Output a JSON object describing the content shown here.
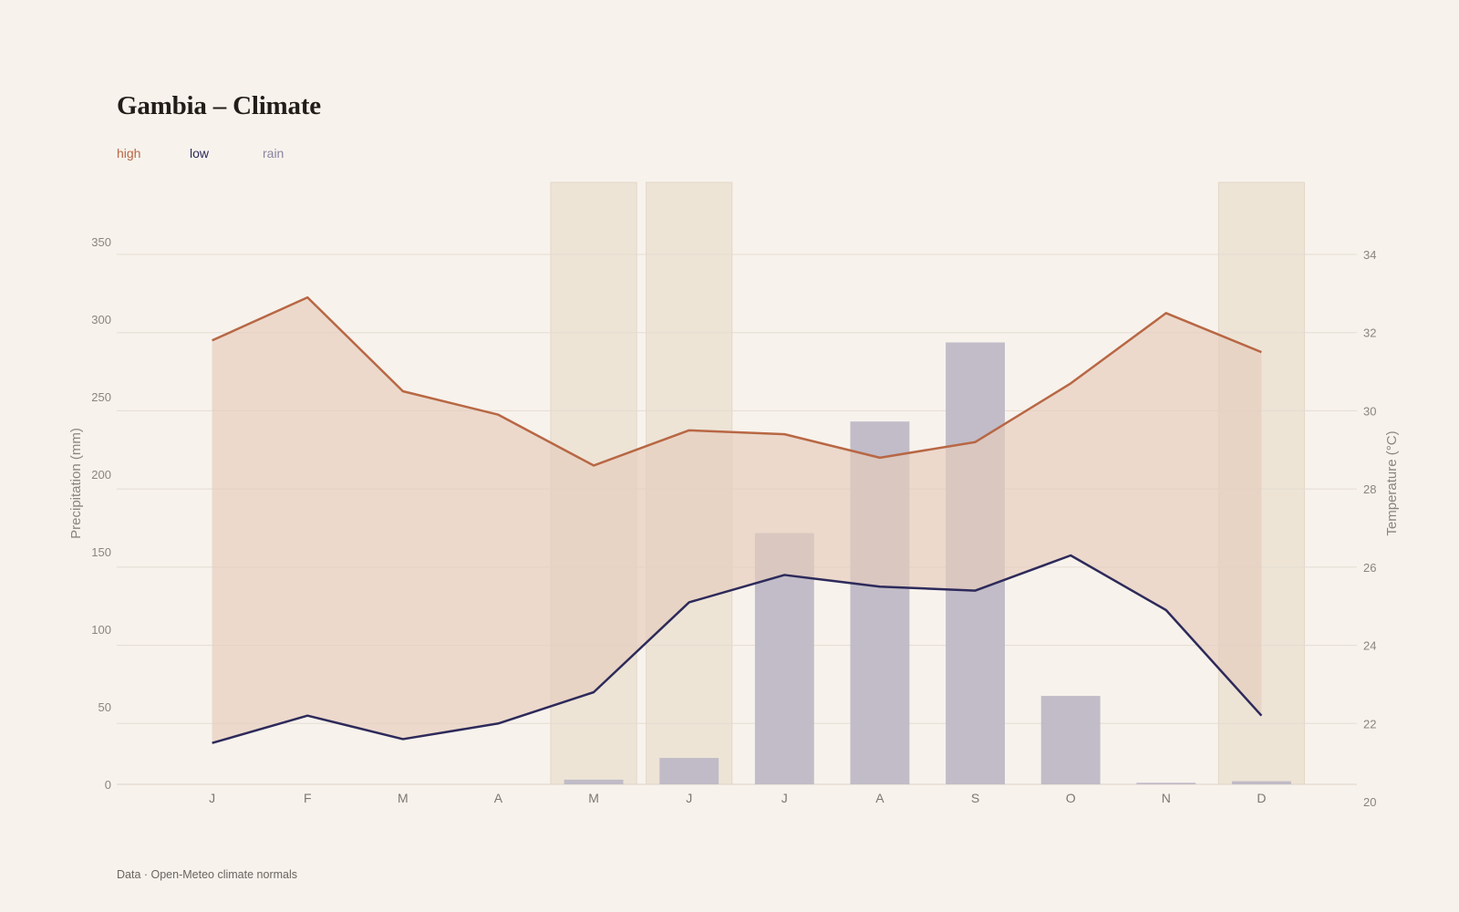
{
  "title": "Gambia – Climate",
  "legend": [
    {
      "label": "high",
      "color": "#b86744"
    },
    {
      "label": "low",
      "color": "#2d2a5a"
    },
    {
      "label": "rain",
      "color": "#8a85a0"
    }
  ],
  "source": "Data · Open-Meteo climate normals",
  "colors": {
    "high_line": "#b86744",
    "band_fill": "#e6cdbd",
    "low_line": "#2d2a5a",
    "rain_bar": "#bcb7c4",
    "highlight": "#ede4d6",
    "grid": "#e5dcd2"
  },
  "chart_data": {
    "type": "bar",
    "categories": [
      "J",
      "F",
      "M",
      "A",
      "M",
      "J",
      "J",
      "A",
      "S",
      "O",
      "N",
      "D"
    ],
    "highlighted_months": [
      4,
      5,
      11
    ],
    "series": [
      {
        "name": "rain",
        "axis": "left",
        "type": "bar",
        "values": [
          0,
          0,
          0,
          0,
          3,
          17,
          162,
          234,
          285,
          57,
          1,
          2
        ]
      },
      {
        "name": "high",
        "axis": "right",
        "type": "line",
        "values": [
          31.8,
          32.9,
          30.5,
          29.9,
          28.6,
          29.5,
          29.4,
          28.8,
          29.2,
          30.7,
          32.5,
          31.5
        ]
      },
      {
        "name": "low",
        "axis": "right",
        "type": "line",
        "values": [
          21.5,
          22.2,
          21.6,
          22.0,
          22.8,
          25.1,
          25.8,
          25.5,
          25.4,
          26.3,
          24.9,
          22.2
        ]
      }
    ],
    "ylabel": "Precipitation (mm)",
    "y2label": "Temperature (°C)",
    "ylim": [
      0,
      350
    ],
    "yticks": [
      0,
      50,
      100,
      150,
      200,
      250,
      300,
      350
    ],
    "y2lim": [
      20,
      34
    ],
    "y2ticks": [
      20,
      22,
      24,
      26,
      28,
      30,
      32,
      34
    ],
    "grid": true,
    "legend_position": "top-left"
  }
}
